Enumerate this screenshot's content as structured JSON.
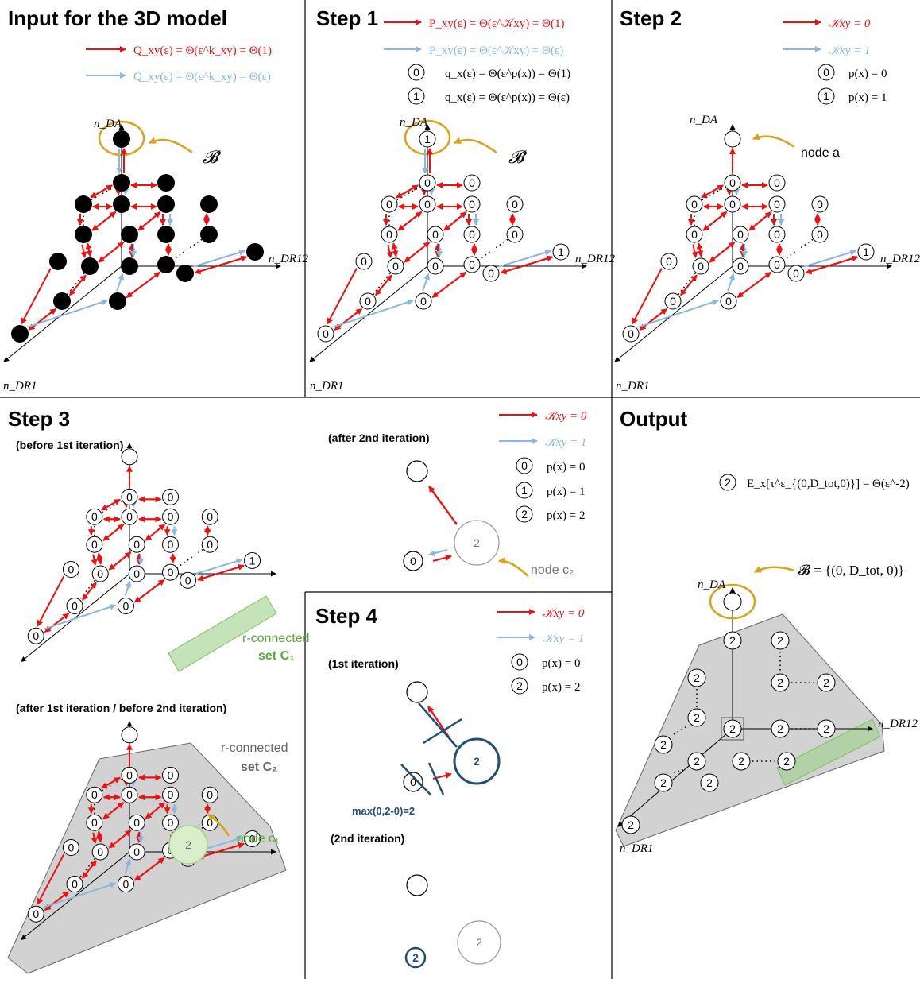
{
  "panels": {
    "input": {
      "title": "Input for the 3D model",
      "legend_red": "Q_xy(ε) = Θ(ε^k_xy) = Θ(1)",
      "legend_blue": "Q_xy(ε) = Θ(ε^k_xy) = Θ(ε)",
      "b_label": "𝓑"
    },
    "step1": {
      "title": "Step 1",
      "legend_red": "P_xy(ε) = Θ(ε^𝒦xy) = Θ(1)",
      "legend_blue": "P_xy(ε) = Θ(ε^𝒦xy) = Θ(ε)",
      "legend_0": "q_x(ε) = Θ(ε^p(x)) = Θ(1)",
      "legend_1": "q_x(ε) = Θ(ε^p(x)) = Θ(ε)",
      "b_label": "𝓑"
    },
    "step2": {
      "title": "Step 2",
      "legend_red": "𝒦xy = 0",
      "legend_blue": "𝒦xy = 1",
      "legend_0": "p(x) = 0",
      "legend_1": "p(x) = 1",
      "node_a": "node a"
    },
    "step3": {
      "title": "Step 3",
      "before_first": "(before 1st iteration)",
      "after_first": "(after 1st iteration / before 2nd iteration)",
      "after_second": "(after 2nd iteration)",
      "legend_red": "𝒦xy = 0",
      "legend_blue": "𝒦xy = 1",
      "legend_0": "p(x) = 0",
      "legend_1": "p(x) = 1",
      "legend_2": "p(x) = 2",
      "set_c1_line1": "r-connected",
      "set_c1_line2": "set C₁",
      "set_c2_line1": "r-connected",
      "set_c2_line2": "set C₂",
      "node_c1": "node c₁",
      "node_c2": "node c₂"
    },
    "step4": {
      "title": "Step 4",
      "first_iter": "(1st iteration)",
      "second_iter": "(2nd iteration)",
      "legend_red": "𝒦xy = 0",
      "legend_blue": "𝒦xy = 1",
      "legend_0": "p(x) = 0",
      "legend_2": "p(x) = 2",
      "max_text": "max(0,2-0)=2"
    },
    "output": {
      "title": "Output",
      "expectation": "E_x[τ^ε_{(0,D_tot,0)}] = Θ(ε^-2)",
      "b_set": "𝓑 = {(0, D_tot, 0)}"
    }
  },
  "axes": {
    "vertical": "n_DA",
    "right": "n_DR12",
    "left": "n_DR1"
  },
  "colors": {
    "red": "#ee1111",
    "blue": "#8ab6e2",
    "gold": "#d9a21b",
    "green": "#9fd18a",
    "navy": "#1f4e79",
    "gray": "#d2d2d2"
  }
}
